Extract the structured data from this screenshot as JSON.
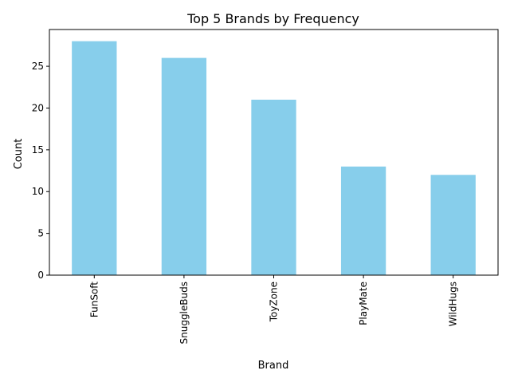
{
  "chart_data": {
    "type": "bar",
    "title": "Top 5 Brands by Frequency",
    "xlabel": "Brand",
    "ylabel": "Count",
    "categories": [
      "FunSoft",
      "SnuggleBuds",
      "ToyZone",
      "PlayMate",
      "WildHugs"
    ],
    "values": [
      28,
      26,
      21,
      13,
      12
    ],
    "ylim": [
      0,
      29.4
    ],
    "yticks": [
      0,
      5,
      10,
      15,
      20,
      25
    ],
    "bar_color": "#87ceeb",
    "grid": false,
    "legend": "none"
  }
}
